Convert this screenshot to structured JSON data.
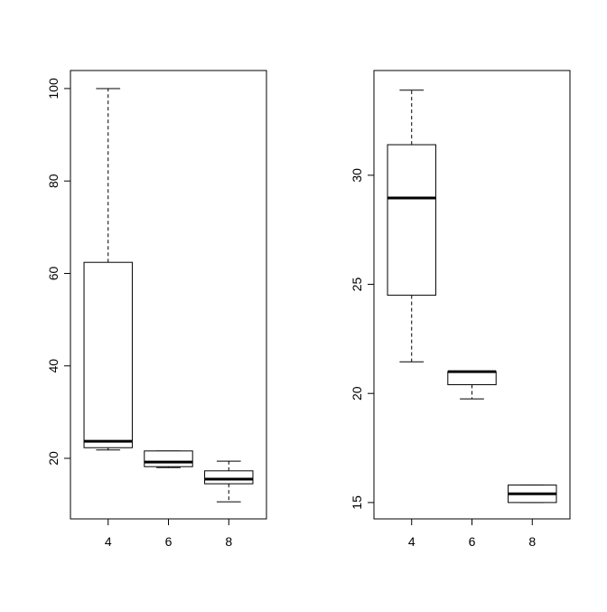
{
  "chart_data": [
    {
      "type": "box",
      "categories": [
        "4",
        "6",
        "8"
      ],
      "boxes": [
        {
          "min": 21.8,
          "q1": 22.3,
          "median": 23.7,
          "q3": 62.4,
          "max": 100
        },
        {
          "min": 18.0,
          "q1": 18.2,
          "median": 19.2,
          "q3": 21.6,
          "max": 21.6
        },
        {
          "min": 10.6,
          "q1": 14.5,
          "median": 15.5,
          "q3": 17.3,
          "max": 19.4
        }
      ],
      "ylim": [
        6.9,
        103.9
      ],
      "yticks": [
        20,
        40,
        60,
        80,
        100
      ]
    },
    {
      "type": "box",
      "categories": [
        "4",
        "6",
        "8"
      ],
      "boxes": [
        {
          "min": 21.45,
          "q1": 24.5,
          "median": 28.96,
          "q3": 31.4,
          "max": 33.9
        },
        {
          "min": 19.75,
          "q1": 20.4,
          "median": 21.0,
          "q3": 21.0,
          "max": 21.0
        },
        {
          "min": 15.0,
          "q1": 15.0,
          "median": 15.4,
          "q3": 15.8,
          "max": 15.8
        }
      ],
      "ylim": [
        14.25,
        34.8
      ],
      "yticks": [
        15,
        20,
        25,
        30
      ]
    }
  ]
}
